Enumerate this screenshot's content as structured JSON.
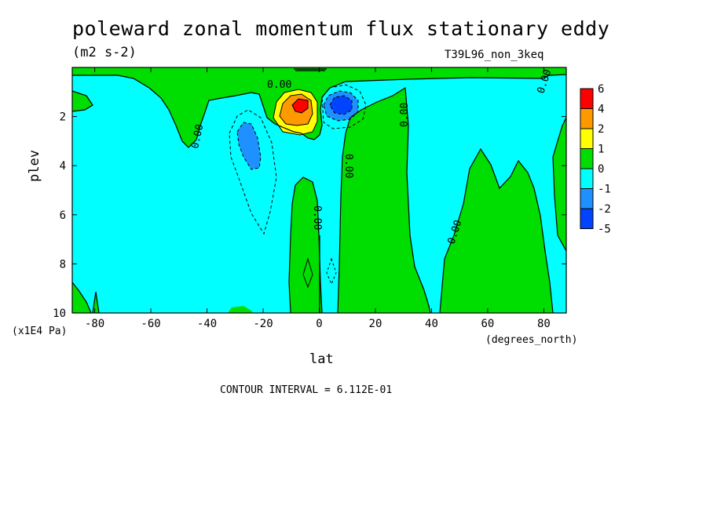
{
  "chart_data": {
    "type": "heatmap",
    "title": "poleward zonal momentum flux stationary eddy",
    "units": "(m2 s-2)",
    "run_id": "T39L96_non_3keq",
    "xlabel": "lat",
    "xunits": "(degrees_north)",
    "ylabel": "plev",
    "yunits": "(x1E4 Pa)",
    "xlim": [
      -88,
      88
    ],
    "ylim": [
      10,
      0
    ],
    "x_ticks": [
      -80,
      -60,
      -40,
      -20,
      0,
      20,
      40,
      60,
      80
    ],
    "x_tick_labels": [
      "-80",
      "-60",
      "-40",
      "-20",
      "0",
      "20",
      "40",
      "60",
      "80"
    ],
    "y_ticks": [
      2,
      4,
      6,
      8,
      10
    ],
    "y_tick_labels": [
      "2",
      "4",
      "6",
      "8",
      "10"
    ],
    "contour_interval": "CONTOUR INTERVAL = 6.112E-01",
    "contour_label": "0.00",
    "colorbar": {
      "levels": [
        "6",
        "4",
        "2",
        "1",
        "0",
        "-1",
        "-2",
        "-5"
      ],
      "colors": [
        "#ff0000",
        "#ff9900",
        "#ffff00",
        "#00dd00",
        "#00ffff",
        "#1e90ff",
        "#0044ff"
      ]
    },
    "regions": [
      {
        "name": "background",
        "value_class": "-1",
        "color": "#00ffff"
      },
      {
        "name": "positive-upper-band",
        "value_class": "0",
        "color": "#00dd00"
      },
      {
        "name": "positive-subtropical-column",
        "value_class": "0",
        "color": "#00dd00"
      },
      {
        "name": "positive-tropical-column",
        "value_class": "0",
        "color": "#00dd00"
      },
      {
        "name": "positive-northern-column",
        "value_class": "0",
        "color": "#00dd00"
      },
      {
        "name": "positive-high-lat-column",
        "value_class": "0",
        "color": "#00dd00"
      },
      {
        "name": "max-center",
        "center": [
          -7,
          1.6
        ],
        "value_class": "6",
        "color": "#ff0000"
      },
      {
        "name": "min-center",
        "center": [
          7,
          1.6
        ],
        "value_class": "-5",
        "color": "#0044ff"
      },
      {
        "name": "negative-south-center",
        "center": [
          -25,
          3.2
        ],
        "value_class": "-2",
        "color": "#1e90ff"
      }
    ]
  }
}
